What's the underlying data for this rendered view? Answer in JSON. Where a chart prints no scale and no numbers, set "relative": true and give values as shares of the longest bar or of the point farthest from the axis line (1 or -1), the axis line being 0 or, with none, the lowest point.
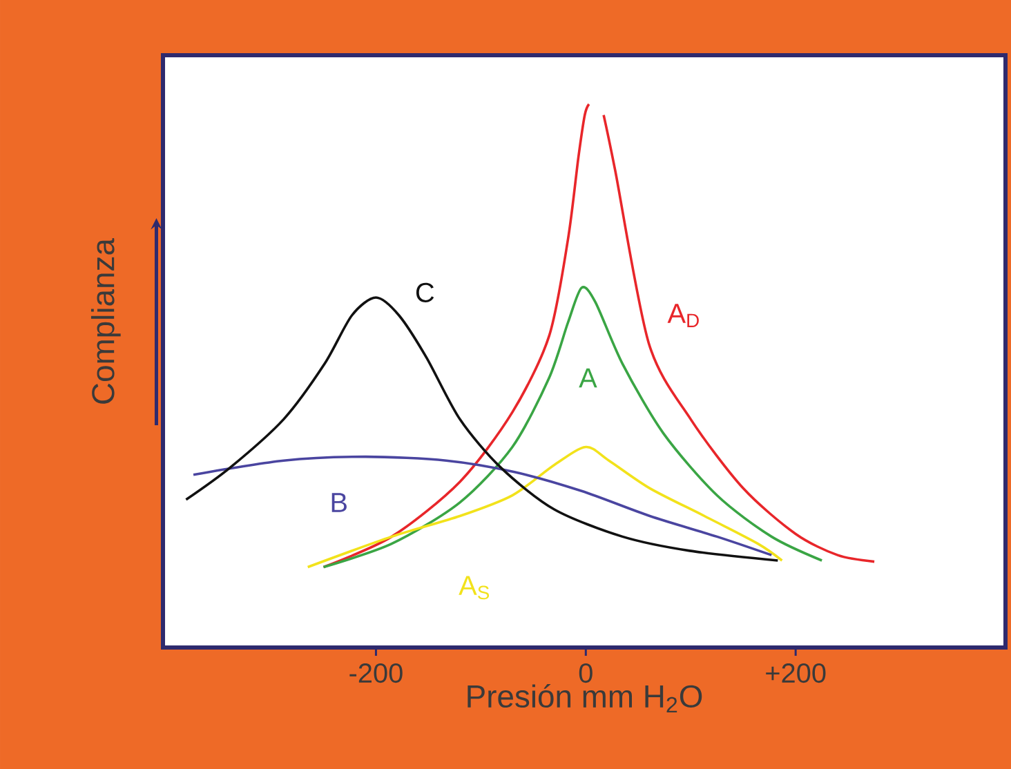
{
  "chart_data": {
    "type": "line",
    "relative": true,
    "xlabel": "Presión mm H$_{2}$O",
    "ylabel": "Complianza",
    "xlim": [
      -403,
      400
    ],
    "xticks": [
      -200,
      0,
      {
        "value": 200,
        "label": "+200"
      }
    ],
    "grid": false,
    "marker": "none",
    "line_style": "solid",
    "series": [
      {
        "name": "A$_{D}$",
        "color": "#e8262a",
        "x": [
          -250,
          -185,
          -120,
          -70,
          -35,
          -17,
          -7,
          -1,
          3,
          10,
          17,
          28,
          60,
          100,
          150,
          200,
          240,
          275
        ],
        "values": [
          0.148,
          0.204,
          0.305,
          0.433,
          0.573,
          0.751,
          0.903,
          0.98,
          1.0,
          null,
          0.98,
          0.878,
          0.56,
          0.42,
          0.293,
          0.209,
          0.17,
          0.158
        ]
      },
      {
        "name": "A",
        "color": "#3aa544",
        "x": [
          -250,
          -185,
          -120,
          -70,
          -35,
          -17,
          -4,
          9,
          35,
          74,
          125,
          177,
          225
        ],
        "values": [
          0.148,
          0.191,
          0.267,
          0.369,
          0.496,
          0.598,
          0.662,
          0.636,
          0.522,
          0.394,
          0.28,
          0.204,
          0.16
        ]
      },
      {
        "name": "A$_{S}$",
        "color": "#f2e21b",
        "x": [
          -265,
          -185,
          -120,
          -70,
          -30,
          0,
          22,
          61,
          113,
          164,
          187
        ],
        "values": [
          0.148,
          0.204,
          0.242,
          0.28,
          0.336,
          0.369,
          0.344,
          0.293,
          0.242,
          0.191,
          0.16
        ]
      },
      {
        "name": "B",
        "color": "#4a45a0",
        "x": [
          -374,
          -288,
          -210,
          -133,
          -68,
          -4,
          61,
          125,
          177
        ],
        "values": [
          0.318,
          0.344,
          0.351,
          0.344,
          0.323,
          0.288,
          0.242,
          0.204,
          0.17
        ]
      },
      {
        "name": "C",
        "color": "#111111",
        "x": [
          -381,
          -339,
          -288,
          -249,
          -223,
          -200,
          -178,
          -152,
          -120,
          -81,
          -30,
          35,
          99,
          183
        ],
        "values": [
          0.272,
          0.331,
          0.42,
          0.522,
          0.611,
          0.644,
          0.611,
          0.534,
          0.42,
          0.331,
          0.254,
          0.204,
          0.178,
          0.16
        ]
      }
    ]
  }
}
